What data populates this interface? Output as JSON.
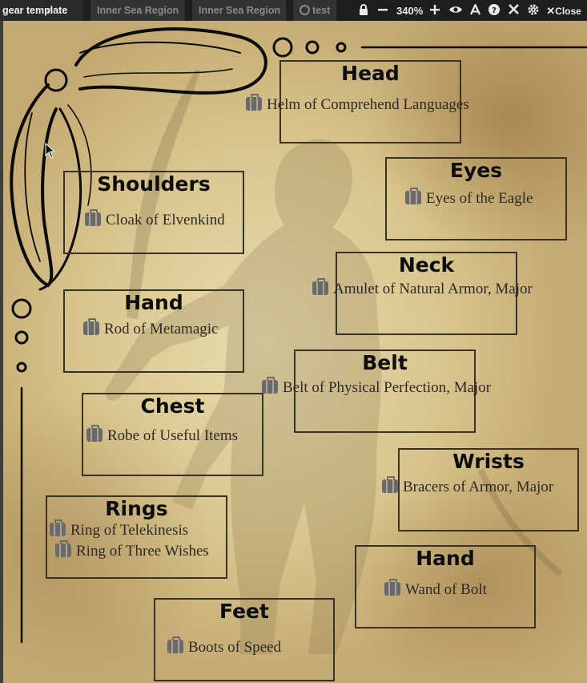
{
  "tabs": [
    {
      "label": "gear template",
      "behind": "n",
      "active": true
    },
    {
      "label": "Inner Sea Region",
      "active": false
    },
    {
      "label": "Inner Sea Region",
      "active": false
    },
    {
      "label": "test",
      "active": false
    }
  ],
  "toolbar": {
    "zoom": "340%",
    "close_label": "Close"
  },
  "slots": {
    "head": {
      "title": "Head",
      "items": [
        "Helm of Comprehend Languages"
      ]
    },
    "eyes": {
      "title": "Eyes",
      "items": [
        "Eyes of the Eagle"
      ]
    },
    "shoulders": {
      "title": "Shoulders",
      "items": [
        "Cloak of Elvenkind"
      ]
    },
    "neck": {
      "title": "Neck",
      "items": [
        "Amulet of Natural Armor, Major"
      ]
    },
    "hand_left": {
      "title": "Hand",
      "items": [
        "Rod of Metamagic"
      ]
    },
    "belt": {
      "title": "Belt",
      "items": [
        "Belt of Physical Perfection, Major"
      ]
    },
    "chest": {
      "title": "Chest",
      "items": [
        "Robe of Useful Items"
      ]
    },
    "wrists": {
      "title": "Wrists",
      "items": [
        "Bracers of Armor, Major"
      ]
    },
    "rings": {
      "title": "Rings",
      "items": [
        "Ring of Telekinesis",
        "Ring of Three Wishes"
      ]
    },
    "hand_right": {
      "title": "Hand",
      "items": [
        "Wand of Bolt"
      ]
    },
    "feet": {
      "title": "Feet",
      "items": [
        "Boots of Speed"
      ]
    }
  },
  "colors": {
    "parchment": "#e3d39f",
    "frame": "#3a3325",
    "title_text": "#0d0d0d",
    "item_text": "#2e2a25",
    "bag_icon": "#6b6a66"
  },
  "icons": {
    "item": "item-bag-icon",
    "lock": "lock-icon",
    "zoom_out": "minus-icon",
    "zoom_in": "plus-icon",
    "visibility": "eye-icon",
    "font": "font-icon",
    "help": "help-icon",
    "tools": "wrench-icon",
    "settings": "gear-icon",
    "close": "close-icon"
  }
}
